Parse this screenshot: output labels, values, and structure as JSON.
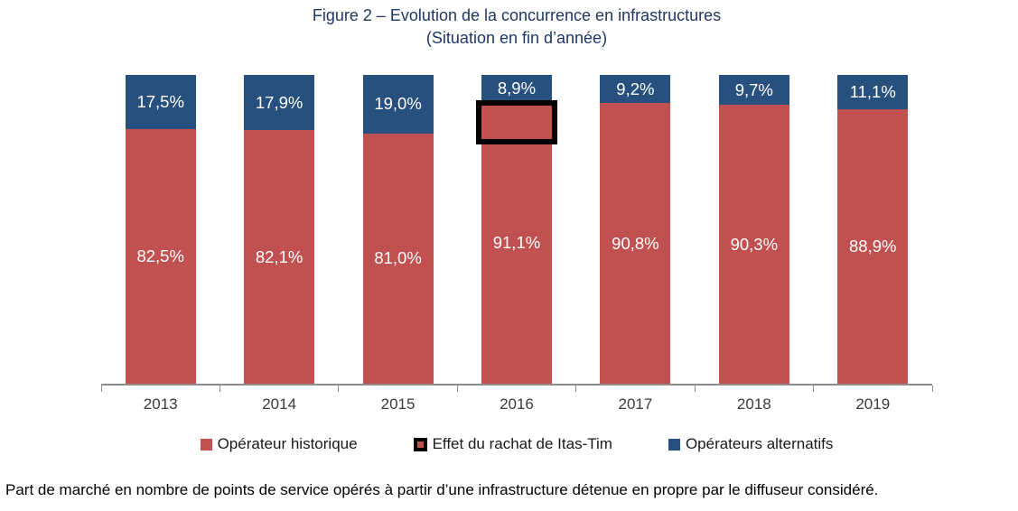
{
  "figure": {
    "title_line1": "Figure 2 – Evolution de la concurrence en infrastructures",
    "title_line2": "(Situation en fin d’année)",
    "caption": "Part de marché en nombre de points de service opérés à partir d’une infrastructure détenue en propre par le diffuseur considéré."
  },
  "legend": {
    "items": [
      {
        "label": "Opérateur historique",
        "marker": "red-square",
        "color": "#c15150"
      },
      {
        "label": "Effet du rachat de Itas-Tim",
        "marker": "black-outlined-square",
        "color": "#000000"
      },
      {
        "label": "Opérateurs alternatifs",
        "marker": "blue-square",
        "color": "#27507e"
      }
    ]
  },
  "chart_data": {
    "type": "bar",
    "stacked": true,
    "unit": "%",
    "title": "Figure 2 – Evolution de la concurrence en infrastructures (Situation en fin d’année)",
    "categories": [
      "2013",
      "2014",
      "2015",
      "2016",
      "2017",
      "2018",
      "2019"
    ],
    "series": [
      {
        "name": "Opérateur historique",
        "position": "bottom",
        "color": "#c15150",
        "values": [
          82.5,
          82.1,
          81.0,
          91.1,
          90.8,
          90.3,
          88.9
        ],
        "value_labels": [
          "82,5%",
          "82,1%",
          "81,0%",
          "91,1%",
          "90,8%",
          "90,3%",
          "88,9%"
        ]
      },
      {
        "name": "Opérateurs alternatifs",
        "position": "top",
        "color": "#27507e",
        "values": [
          17.5,
          17.9,
          19.0,
          8.9,
          9.2,
          9.7,
          11.1
        ],
        "value_labels": [
          "17,5%",
          "17,9%",
          "19,0%",
          "8,9%",
          "9,2%",
          "9,7%",
          "11,1%"
        ]
      }
    ],
    "annotation": {
      "label": "Effet du rachat de Itas-Tim",
      "category": "2016",
      "shape": "black-rectangle-outline"
    },
    "ylim": [
      0,
      100
    ],
    "grid": false,
    "legend_position": "bottom",
    "value_label_color": "#ffffff",
    "axis_color": "#8c8c8c",
    "title_color": "#1f3864"
  }
}
